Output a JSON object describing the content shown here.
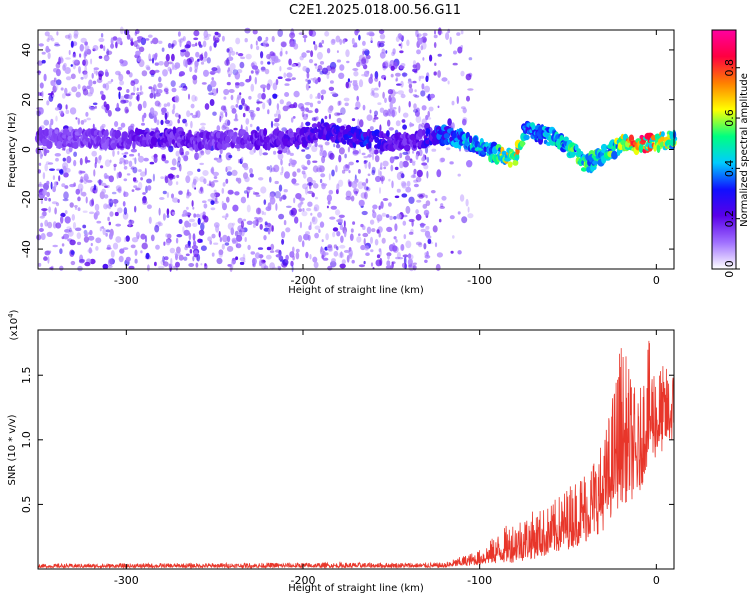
{
  "chart_data": [
    {
      "type": "heatmap",
      "title": "C2E1.2025.018.00.56.G11",
      "xlabel": "Height of straight line (km)",
      "ylabel": "Frequency (Hz)",
      "xlim": [
        -350,
        10
      ],
      "ylim": [
        -48,
        48
      ],
      "xticks": [
        -300,
        -200,
        -100,
        0
      ],
      "xtick_labels": [
        "-300",
        "-200",
        "-100",
        "0"
      ],
      "yticks": [
        -40,
        -20,
        0,
        20,
        40
      ],
      "ytick_labels": [
        "-40",
        "-20",
        "0",
        "20",
        "40"
      ],
      "colorbar": {
        "label": "Normalized spectral amplitude",
        "range": [
          0,
          0.95
        ],
        "ticks": [
          0,
          0.2,
          0.4,
          0.6,
          0.8
        ],
        "tick_labels": [
          "0.0",
          "0.2",
          "0.4",
          "0.6",
          "0.8"
        ],
        "colormap": [
          "#ffffff",
          "#a070ff",
          "#5a00e8",
          "#1010ff",
          "#00ccff",
          "#00ff80",
          "#ffff00",
          "#ff8000",
          "#ff0040",
          "#ff00a0"
        ]
      },
      "ridge": [
        {
          "x": -350,
          "f": 5,
          "amp": 0.12
        },
        {
          "x": -300,
          "f": 4,
          "amp": 0.15
        },
        {
          "x": -280,
          "f": 5,
          "amp": 0.2
        },
        {
          "x": -260,
          "f": 4,
          "amp": 0.15
        },
        {
          "x": -240,
          "f": 4,
          "amp": 0.15
        },
        {
          "x": -220,
          "f": 4,
          "amp": 0.18
        },
        {
          "x": -200,
          "f": 5,
          "amp": 0.2
        },
        {
          "x": -190,
          "f": 8,
          "amp": 0.22
        },
        {
          "x": -180,
          "f": 6,
          "amp": 0.25
        },
        {
          "x": -165,
          "f": 4,
          "amp": 0.3
        },
        {
          "x": -140,
          "f": 3,
          "amp": 0.15
        },
        {
          "x": -120,
          "f": 6,
          "amp": 0.35
        },
        {
          "x": -110,
          "f": 4,
          "amp": 0.4
        },
        {
          "x": -100,
          "f": 1,
          "amp": 0.45
        },
        {
          "x": -90,
          "f": -2,
          "amp": 0.55
        },
        {
          "x": -80,
          "f": -4,
          "amp": 0.8
        },
        {
          "x": -75,
          "f": 8,
          "amp": 0.4
        },
        {
          "x": -60,
          "f": 5,
          "amp": 0.45
        },
        {
          "x": -50,
          "f": 1,
          "amp": 0.5
        },
        {
          "x": -40,
          "f": -6,
          "amp": 0.55
        },
        {
          "x": -30,
          "f": -2,
          "amp": 0.5
        },
        {
          "x": -20,
          "f": 2,
          "amp": 0.6
        },
        {
          "x": -10,
          "f": 2,
          "amp": 0.9
        },
        {
          "x": 0,
          "f": 3,
          "amp": 0.7
        },
        {
          "x": 10,
          "f": 4,
          "amp": 0.6
        }
      ]
    },
    {
      "type": "line",
      "xlabel": "Height of straight line (km)",
      "ylabel": "SNR (10 * v/v)",
      "yscale_label": "(x10",
      "yscale_exp": "4",
      "yscale_close": ")",
      "xlim": [
        -350,
        10
      ],
      "ylim": [
        0,
        1.85
      ],
      "xticks": [
        -300,
        -200,
        -100,
        0
      ],
      "xtick_labels": [
        "-300",
        "-200",
        "-100",
        "0"
      ],
      "yticks": [
        0.5,
        1.0,
        1.5
      ],
      "ytick_labels": [
        "0.5",
        "1.0",
        "1.5"
      ],
      "color": "#e8362a",
      "envelope": [
        {
          "x": -350,
          "low": 0.01,
          "high": 0.04
        },
        {
          "x": -200,
          "low": 0.01,
          "high": 0.05
        },
        {
          "x": -120,
          "low": 0.01,
          "high": 0.05
        },
        {
          "x": -100,
          "low": 0.03,
          "high": 0.15
        },
        {
          "x": -80,
          "low": 0.05,
          "high": 0.4
        },
        {
          "x": -60,
          "low": 0.1,
          "high": 0.5
        },
        {
          "x": -50,
          "low": 0.15,
          "high": 0.65
        },
        {
          "x": -40,
          "low": 0.2,
          "high": 0.8
        },
        {
          "x": -30,
          "low": 0.3,
          "high": 1.0
        },
        {
          "x": -25,
          "low": 0.4,
          "high": 1.35
        },
        {
          "x": -20,
          "low": 0.5,
          "high": 1.8
        },
        {
          "x": -10,
          "low": 0.55,
          "high": 1.3
        },
        {
          "x": -5,
          "low": 0.8,
          "high": 1.8
        },
        {
          "x": 0,
          "low": 0.85,
          "high": 1.6
        },
        {
          "x": 10,
          "low": 1.0,
          "high": 1.55
        }
      ]
    }
  ]
}
